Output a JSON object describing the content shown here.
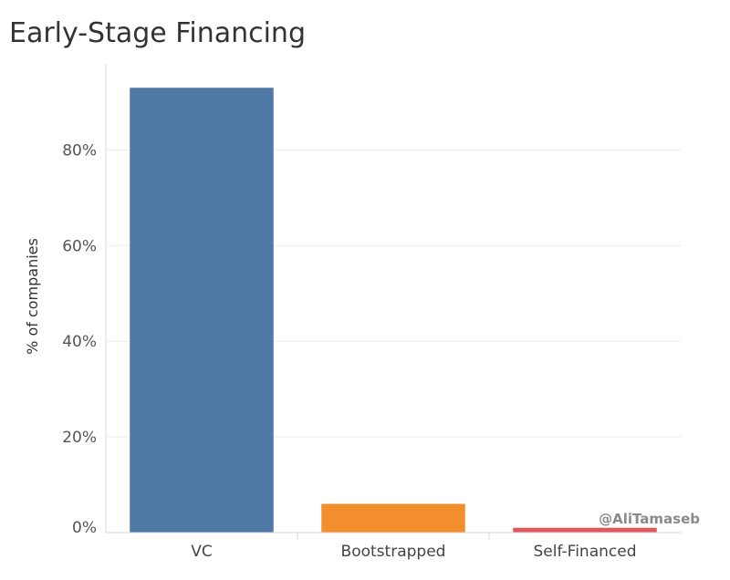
{
  "chart_data": {
    "type": "bar",
    "title": "Early-Stage Financing",
    "xlabel": "",
    "ylabel": "% of companies",
    "categories": [
      "VC",
      "Bootstrapped",
      "Self-Financed"
    ],
    "values": [
      93,
      6,
      1
    ],
    "colors": [
      "#4e79a7",
      "#f28e2b",
      "#e15759"
    ],
    "ylim": [
      0,
      98
    ],
    "yticks": [
      0,
      20,
      40,
      60,
      80
    ],
    "ytick_labels": [
      "0%",
      "20%",
      "40%",
      "60%",
      "80%"
    ],
    "grid": true,
    "legend": "none"
  },
  "watermark": "@AliTamaseb"
}
